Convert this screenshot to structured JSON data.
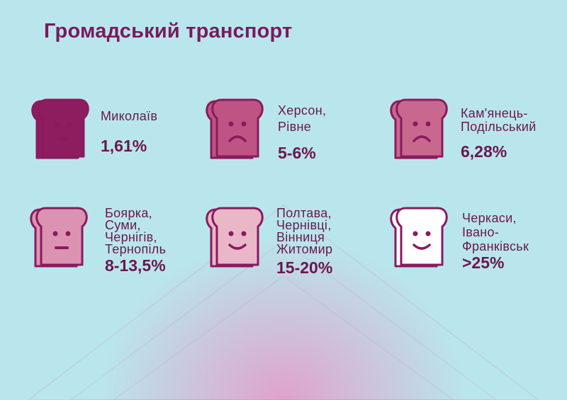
{
  "title": "Громадський транспорт",
  "items": [
    {
      "city": "Миколаїв",
      "value": "1,61%",
      "face": "dizzy",
      "color": "#8e1d5f"
    },
    {
      "city": "Херсон,\nРівне",
      "value": "5-6%",
      "face": "sad",
      "color": "#bd5484"
    },
    {
      "city": "Кам'янець-\nПодільський",
      "value": "6,28%",
      "face": "sad",
      "color": "#c9688f"
    },
    {
      "city": "Боярка,\nСуми,\nЧернігів,\nТернопіль",
      "value": "8-13,5%",
      "face": "neutral",
      "color": "#dc93b1"
    },
    {
      "city": "Полтава,\nЧернівці,\nВінниця\nЖитомир",
      "value": "15-20%",
      "face": "smile",
      "color": "#e9b7c8"
    },
    {
      "city": "Черкаси,\nІвано-\nФранківськ",
      "value": ">25%",
      "face": "smile",
      "color": "#ffffff"
    }
  ],
  "colors": {
    "outline": "#8a1a5e",
    "text": "#6b1650",
    "background": "#b9e6ec"
  }
}
